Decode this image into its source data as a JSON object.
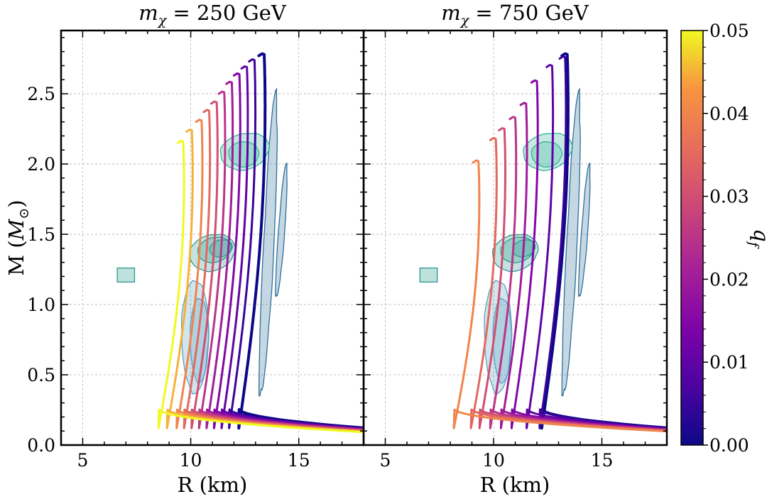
{
  "chart_data": {
    "type": "line",
    "layout": "two panels side by side with shared y axis and one colorbar",
    "panels": [
      {
        "title": "m_χ = 250 GeV",
        "title_main": "m",
        "title_sub": "χ",
        "title_rest": " = 250 GeV",
        "q_values": [
          0.0,
          0.005,
          0.01,
          0.015,
          0.02,
          0.025,
          0.03,
          0.035,
          0.04,
          0.045,
          0.05
        ],
        "r_max_values": [
          13.4,
          12.95,
          12.6,
          12.25,
          11.9,
          11.55,
          11.2,
          10.85,
          10.5,
          10.05,
          9.65
        ],
        "m_max_values": [
          2.78,
          2.74,
          2.69,
          2.64,
          2.58,
          2.51,
          2.44,
          2.38,
          2.31,
          2.24,
          2.16
        ]
      },
      {
        "title": "m_χ = 750 GeV",
        "title_main": "m",
        "title_sub": "χ",
        "title_rest": " = 750 GeV",
        "q_values": [
          0.0,
          0.005,
          0.01,
          0.015,
          0.02,
          0.025,
          0.03,
          0.035,
          0.04
        ],
        "r_max_values": [
          13.4,
          13.3,
          12.7,
          12.0,
          11.5,
          11.0,
          10.5,
          10.1,
          9.3
        ],
        "m_max_values": [
          2.78,
          2.76,
          2.7,
          2.59,
          2.43,
          2.33,
          2.25,
          2.18,
          2.02
        ]
      }
    ],
    "xlabel": "R (km)",
    "ylabel_main": "M (",
    "ylabel_sym": "M",
    "ylabel_sub": "⊙",
    "ylabel_close": ")",
    "xlim": [
      4,
      18
    ],
    "ylim": [
      0,
      2.95
    ],
    "xticks": [
      5,
      10,
      15
    ],
    "yticks": [
      0,
      0.5,
      1,
      1.5,
      2,
      2.5
    ],
    "ytick_labels": [
      "0.0",
      "0.5",
      "1.0",
      "1.5",
      "2.0",
      "2.5"
    ],
    "grid": true,
    "colorbar": {
      "label_main": "q",
      "label_sub": "f",
      "range": [
        0,
        0.05
      ],
      "ticks": [
        0,
        0.01,
        0.02,
        0.03,
        0.04,
        0.05
      ],
      "tick_labels": [
        "0.00",
        "0.01",
        "0.02",
        "0.03",
        "0.04",
        "0.05"
      ],
      "colormap": "plasma"
    },
    "constraint_regions": [
      {
        "name": "Heavy pulsar (~2.1 M☉) 68/95% region",
        "color": "#3fbf98",
        "center_r": 12.5,
        "center_m": 2.08
      },
      {
        "name": "GW170817-type 68/95/99% region",
        "color": "#2a9a8e",
        "center_r": 11.0,
        "center_m": 1.38
      },
      {
        "name": "NICER-type 68/95% region",
        "color": "#2f7f96",
        "center_r": 13.8,
        "center_m": 1.45
      },
      {
        "name": "Low-mass compact object 68/95% region",
        "color": "#3e6fa0",
        "center_r": 10.2,
        "center_m": 0.78
      },
      {
        "name": "Point-like constraint",
        "color": "#2a9a8e",
        "center_r": 7.0,
        "center_m": 1.21
      }
    ]
  }
}
